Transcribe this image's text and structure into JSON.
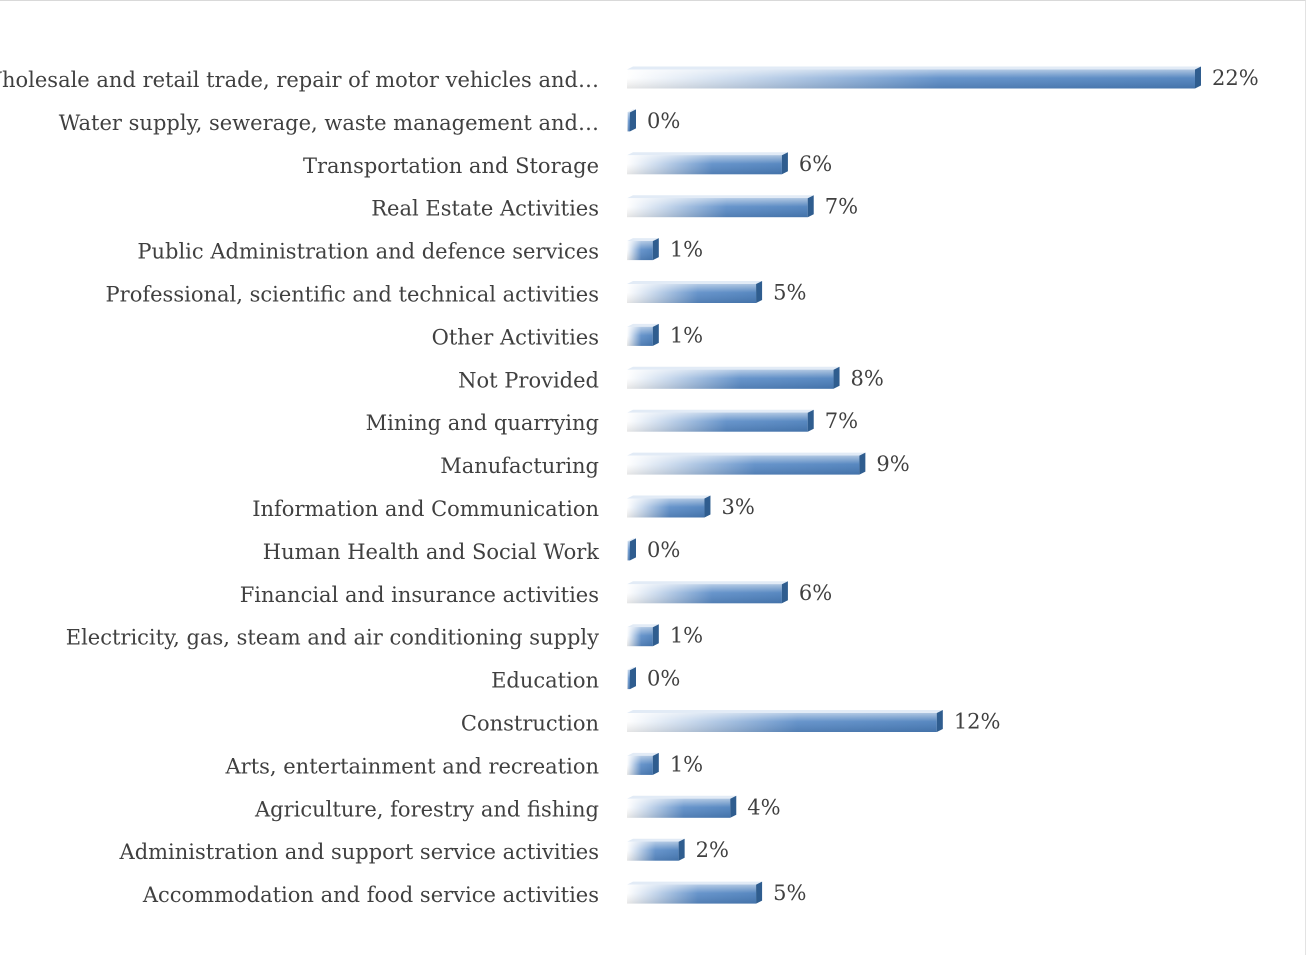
{
  "chart_data": {
    "type": "bar",
    "orientation": "horizontal",
    "categories": [
      "Wholesale and retail trade, repair of motor vehicles and…",
      "Water supply, sewerage, waste management and…",
      "Transportation and Storage",
      "Real Estate Activities",
      "Public Administration and defence services",
      "Professional, scientific and technical activities",
      "Other Activities",
      "Not Provided",
      "Mining and quarrying",
      "Manufacturing",
      "Information and Communication",
      "Human Health and Social Work",
      "Financial and insurance activities",
      "Electricity, gas, steam and air conditioning supply",
      "Education",
      "Construction",
      "Arts, entertainment and recreation",
      "Agriculture, forestry and fishing",
      "Administration and support service activities",
      "Accommodation and food service activities"
    ],
    "values": [
      22,
      0,
      6,
      7,
      1,
      5,
      1,
      8,
      7,
      9,
      3,
      0,
      6,
      1,
      0,
      12,
      1,
      4,
      2,
      5
    ],
    "value_labels": [
      "22%",
      "0%",
      "6%",
      "7%",
      "1%",
      "5%",
      "1%",
      "8%",
      "7%",
      "9%",
      "3%",
      "0%",
      "6%",
      "1%",
      "0%",
      "12%",
      "1%",
      "4%",
      "2%",
      "5%"
    ],
    "title": "",
    "xlabel": "",
    "ylabel": "",
    "xlim": [
      0,
      22
    ],
    "grid": false,
    "legend": "none",
    "bar_color": "#4a7ebb",
    "bar_highlight_color": "#ffffff",
    "bar_shadow_color": "#2f5d8f",
    "label_color": "#404040"
  }
}
